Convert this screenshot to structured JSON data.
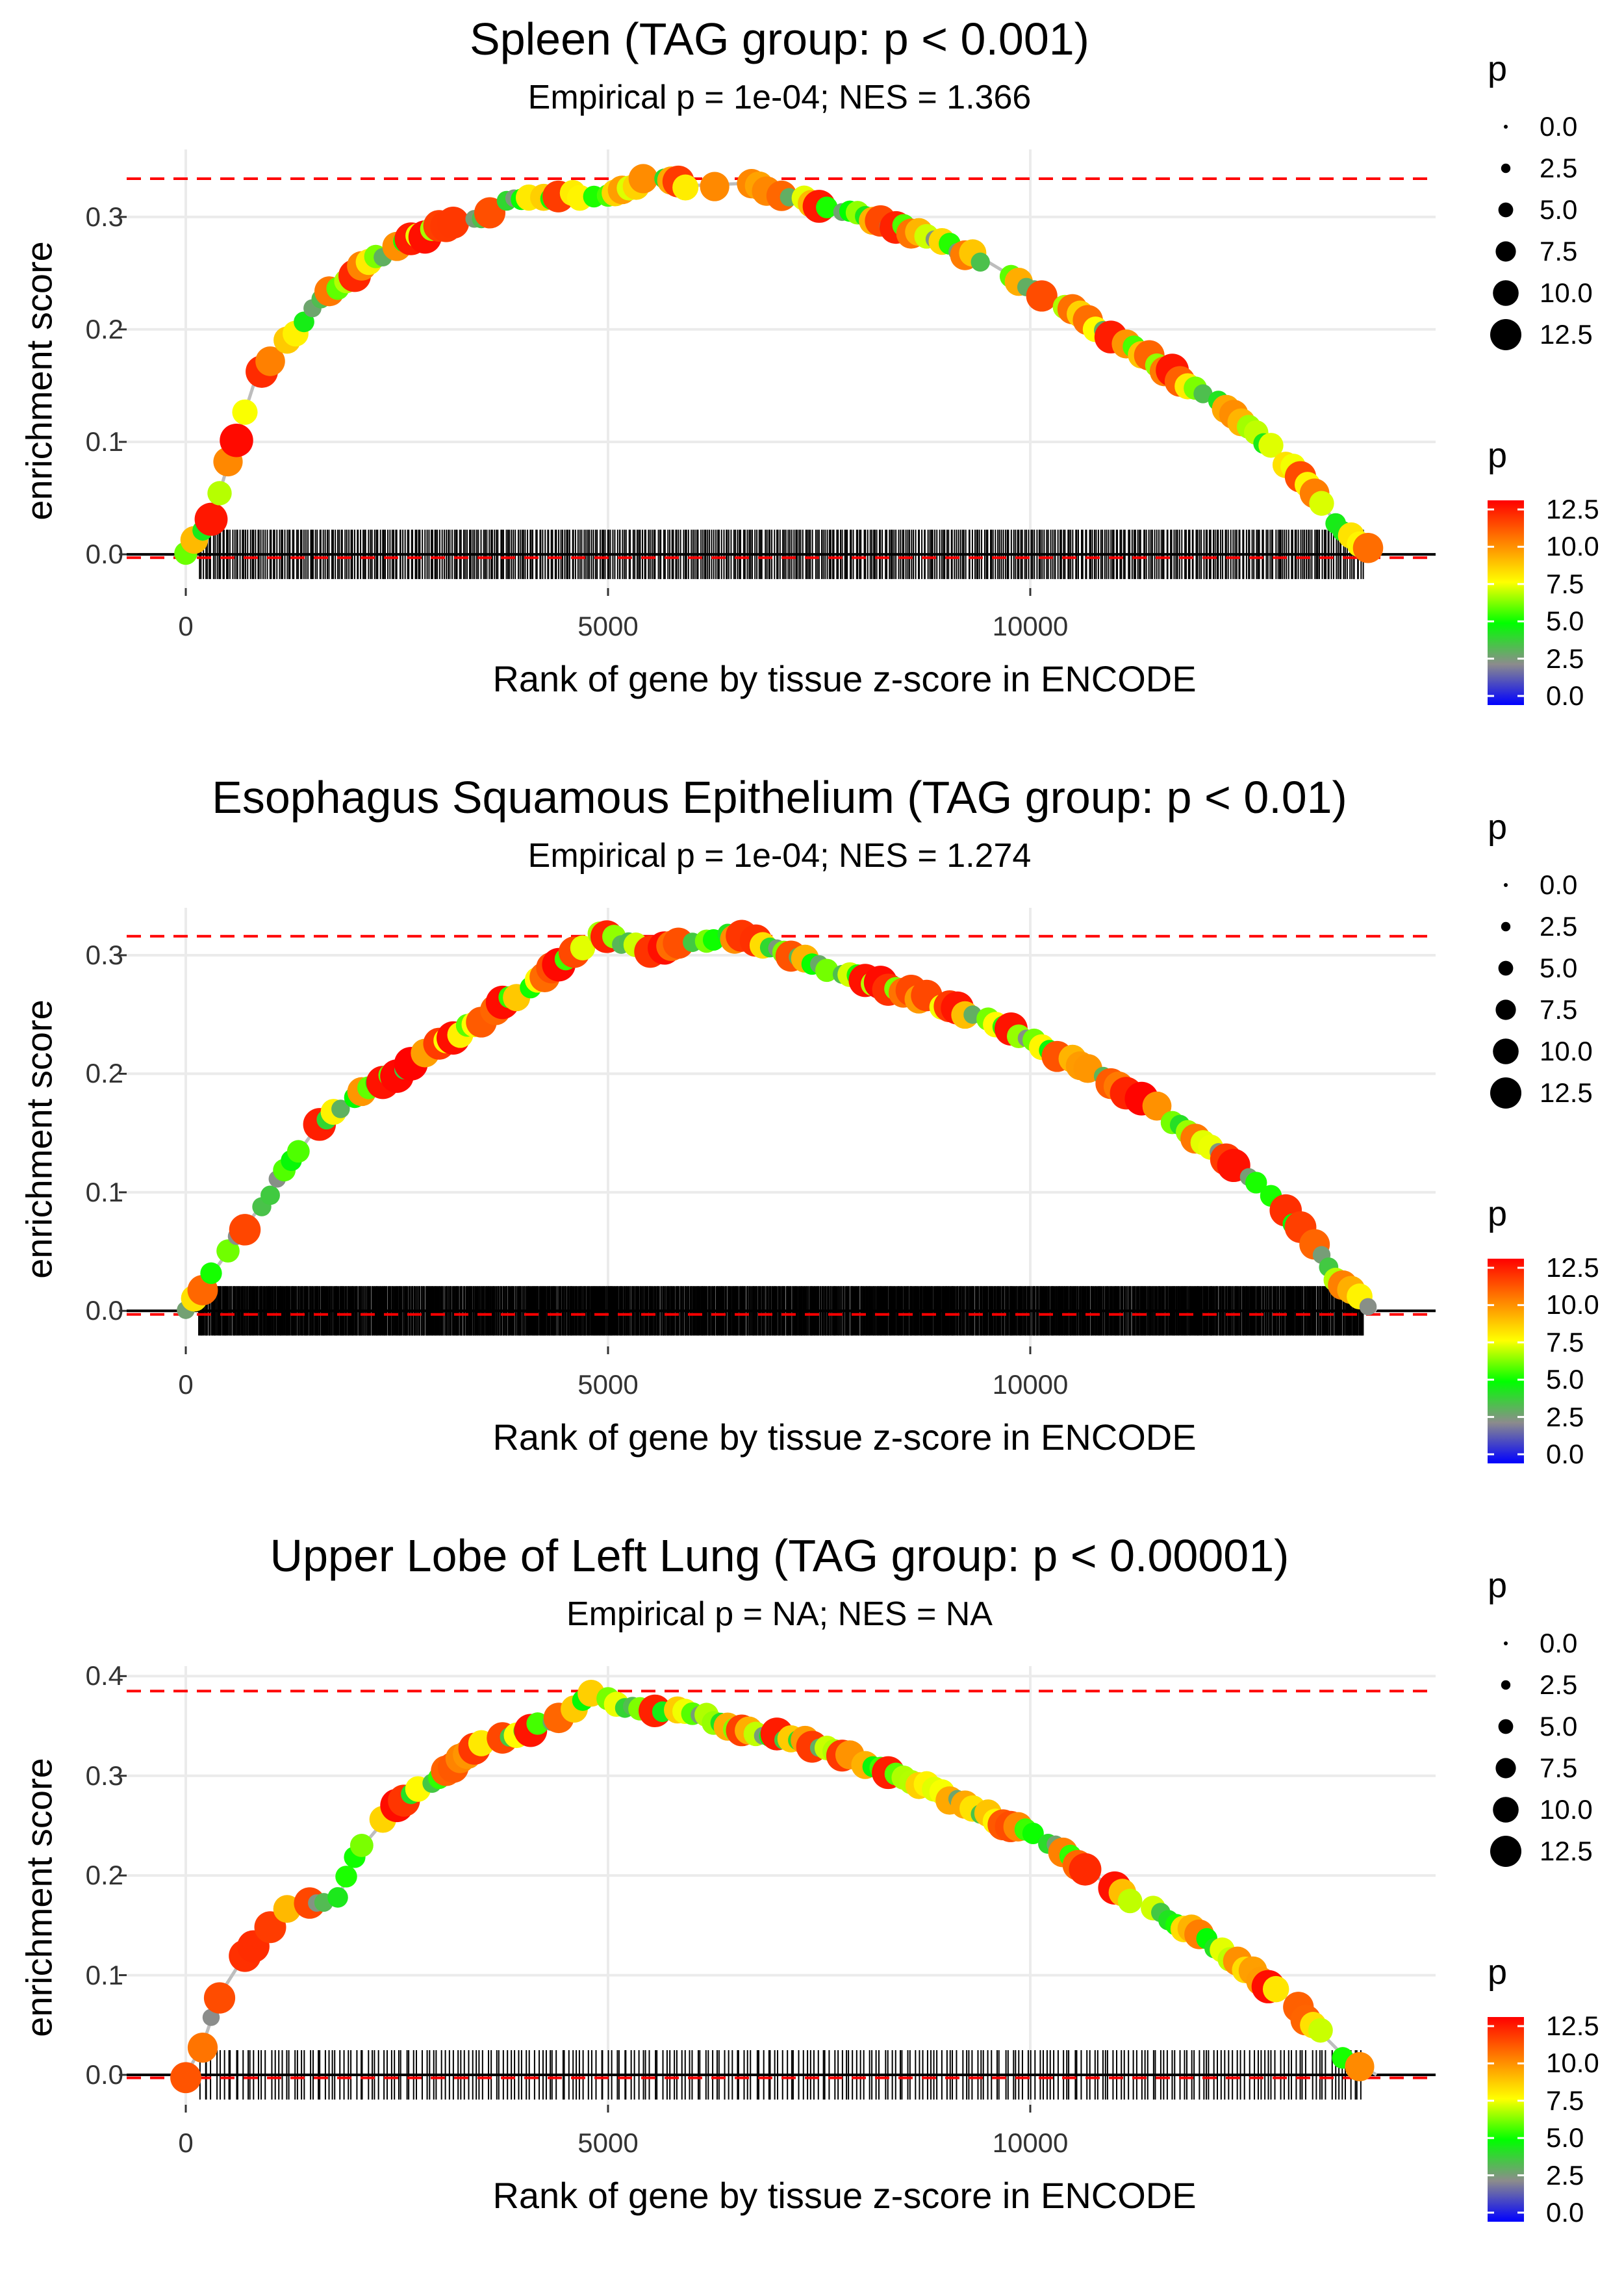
{
  "chart_data": [
    {
      "type": "line",
      "title": "Spleen (TAG group: p < 0.001)",
      "subtitle": "Empirical p = 1e-04; NES = 1.366",
      "xlabel": "Rank of gene by tissue z-score in ENCODE",
      "ylabel": "enrichment score",
      "xlim": [
        -700,
        14800
      ],
      "ylim": [
        -0.03,
        0.36
      ],
      "x_ticks": [
        0,
        5000,
        10000
      ],
      "x_tick_labels": [
        "0",
        "5000",
        "10000"
      ],
      "y_ticks": [
        0,
        0.1,
        0.2,
        0.3
      ],
      "y_tick_labels": [
        "0.0",
        "0.1",
        "0.2",
        "0.3"
      ],
      "max_es": 0.334,
      "min_es": -0.003,
      "n_genes": 14100,
      "running_es": [
        [
          0,
          0
        ],
        [
          300,
          0.03
        ],
        [
          500,
          0.08
        ],
        [
          800,
          0.15
        ],
        [
          1200,
          0.19
        ],
        [
          1600,
          0.225
        ],
        [
          2000,
          0.25
        ],
        [
          2500,
          0.275
        ],
        [
          3000,
          0.29
        ],
        [
          3500,
          0.3
        ],
        [
          3800,
          0.315
        ],
        [
          4500,
          0.318
        ],
        [
          5000,
          0.322
        ],
        [
          5500,
          0.334
        ],
        [
          6000,
          0.328
        ],
        [
          6700,
          0.33
        ],
        [
          7500,
          0.31
        ],
        [
          8500,
          0.29
        ],
        [
          9500,
          0.26
        ],
        [
          10500,
          0.215
        ],
        [
          11500,
          0.17
        ],
        [
          12500,
          0.12
        ],
        [
          13200,
          0.07
        ],
        [
          13700,
          0.02
        ],
        [
          14100,
          0
        ]
      ],
      "hit_count": 600,
      "legend": {
        "size_title": "p",
        "size_labels": [
          "0.0",
          "2.5",
          "5.0",
          "7.5",
          "10.0",
          "12.5"
        ],
        "color_title": "p",
        "color_labels": [
          "12.5",
          "10.0",
          "7.5",
          "5.0",
          "2.5",
          "0.0"
        ],
        "colors": [
          "#0000ff",
          "#8c8c8c",
          "#00ff00",
          "#ffff00",
          "#ff8000",
          "#ff0000"
        ]
      }
    },
    {
      "type": "line",
      "title": "Esophagus Squamous Epithelium (TAG group: p < 0.01)",
      "subtitle": "Empirical p = 1e-04; NES = 1.274",
      "xlabel": "Rank of gene by tissue z-score in ENCODE",
      "ylabel": "enrichment score",
      "xlim": [
        -700,
        14800
      ],
      "ylim": [
        -0.03,
        0.34
      ],
      "x_ticks": [
        0,
        5000,
        10000
      ],
      "x_tick_labels": [
        "0",
        "5000",
        "10000"
      ],
      "y_ticks": [
        0,
        0.1,
        0.2,
        0.3
      ],
      "y_tick_labels": [
        "0.0",
        "0.1",
        "0.2",
        "0.3"
      ],
      "max_es": 0.316,
      "min_es": -0.003,
      "n_genes": 14100,
      "running_es": [
        [
          0,
          0
        ],
        [
          300,
          0.03
        ],
        [
          600,
          0.06
        ],
        [
          1000,
          0.1
        ],
        [
          1500,
          0.15
        ],
        [
          2000,
          0.18
        ],
        [
          2500,
          0.2
        ],
        [
          3000,
          0.225
        ],
        [
          3500,
          0.245
        ],
        [
          4000,
          0.27
        ],
        [
          4500,
          0.295
        ],
        [
          4900,
          0.316
        ],
        [
          5500,
          0.305
        ],
        [
          6000,
          0.312
        ],
        [
          6500,
          0.316
        ],
        [
          7000,
          0.305
        ],
        [
          7500,
          0.29
        ],
        [
          8500,
          0.27
        ],
        [
          9500,
          0.245
        ],
        [
          10500,
          0.21
        ],
        [
          11500,
          0.17
        ],
        [
          12500,
          0.12
        ],
        [
          13200,
          0.07
        ],
        [
          13700,
          0.02
        ],
        [
          14100,
          0
        ]
      ],
      "hit_count": 1300,
      "legend": {
        "size_title": "p",
        "size_labels": [
          "0.0",
          "2.5",
          "5.0",
          "7.5",
          "10.0",
          "12.5"
        ],
        "color_title": "p",
        "color_labels": [
          "12.5",
          "10.0",
          "7.5",
          "5.0",
          "2.5",
          "0.0"
        ],
        "colors": [
          "#0000ff",
          "#8c8c8c",
          "#00ff00",
          "#ffff00",
          "#ff8000",
          "#ff0000"
        ]
      }
    },
    {
      "type": "line",
      "title": "Upper Lobe of Left Lung (TAG group: p < 0.00001)",
      "subtitle": "Empirical p = NA; NES = NA",
      "xlabel": "Rank of gene by tissue z-score in ENCODE",
      "ylabel": "enrichment score",
      "xlim": [
        -700,
        14800
      ],
      "ylim": [
        -0.03,
        0.41
      ],
      "x_ticks": [
        0,
        5000,
        10000
      ],
      "x_tick_labels": [
        "0",
        "5000",
        "10000"
      ],
      "y_ticks": [
        0,
        0.1,
        0.2,
        0.3,
        0.4
      ],
      "y_tick_labels": [
        "0.0",
        "0.1",
        "0.2",
        "0.3",
        "0.4"
      ],
      "max_es": 0.385,
      "min_es": -0.003,
      "n_genes": 14100,
      "running_es": [
        [
          0,
          0
        ],
        [
          200,
          0.03
        ],
        [
          400,
          0.08
        ],
        [
          700,
          0.12
        ],
        [
          1000,
          0.15
        ],
        [
          1300,
          0.175
        ],
        [
          1800,
          0.175
        ],
        [
          2000,
          0.22
        ],
        [
          2500,
          0.27
        ],
        [
          3000,
          0.3
        ],
        [
          3500,
          0.33
        ],
        [
          4000,
          0.345
        ],
        [
          4500,
          0.36
        ],
        [
          4800,
          0.385
        ],
        [
          5200,
          0.37
        ],
        [
          6000,
          0.365
        ],
        [
          6500,
          0.345
        ],
        [
          7000,
          0.34
        ],
        [
          7500,
          0.33
        ],
        [
          8500,
          0.3
        ],
        [
          9500,
          0.26
        ],
        [
          10300,
          0.23
        ],
        [
          11000,
          0.185
        ],
        [
          12000,
          0.14
        ],
        [
          13000,
          0.08
        ],
        [
          13700,
          0.02
        ],
        [
          14100,
          0
        ]
      ],
      "hit_count": 300,
      "legend": {
        "size_title": "p",
        "size_labels": [
          "0.0",
          "2.5",
          "5.0",
          "7.5",
          "10.0",
          "12.5"
        ],
        "color_title": "p",
        "color_labels": [
          "12.5",
          "10.0",
          "7.5",
          "5.0",
          "2.5",
          "0.0"
        ],
        "colors": [
          "#0000ff",
          "#8c8c8c",
          "#00ff00",
          "#ffff00",
          "#ff8000",
          "#ff0000"
        ]
      }
    }
  ]
}
